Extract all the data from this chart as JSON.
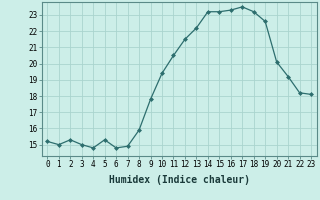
{
  "x": [
    0,
    1,
    2,
    3,
    4,
    5,
    6,
    7,
    8,
    9,
    10,
    11,
    12,
    13,
    14,
    15,
    16,
    17,
    18,
    19,
    20,
    21,
    22,
    23
  ],
  "y": [
    15.2,
    15.0,
    15.3,
    15.0,
    14.8,
    15.3,
    14.8,
    14.9,
    15.9,
    17.8,
    19.4,
    20.5,
    21.5,
    22.2,
    23.2,
    23.2,
    23.3,
    23.5,
    23.2,
    22.6,
    20.1,
    19.2,
    18.2,
    18.1
  ],
  "line_color": "#2d6e6e",
  "marker": "D",
  "bg_color": "#cceee8",
  "grid_color": "#aad4ce",
  "xlabel": "Humidex (Indice chaleur)",
  "ylabel_ticks": [
    15,
    16,
    17,
    18,
    19,
    20,
    21,
    22,
    23
  ],
  "xlim": [
    -0.5,
    23.5
  ],
  "ylim": [
    14.3,
    23.8
  ],
  "tick_fontsize": 5.5,
  "xlabel_fontsize": 7
}
